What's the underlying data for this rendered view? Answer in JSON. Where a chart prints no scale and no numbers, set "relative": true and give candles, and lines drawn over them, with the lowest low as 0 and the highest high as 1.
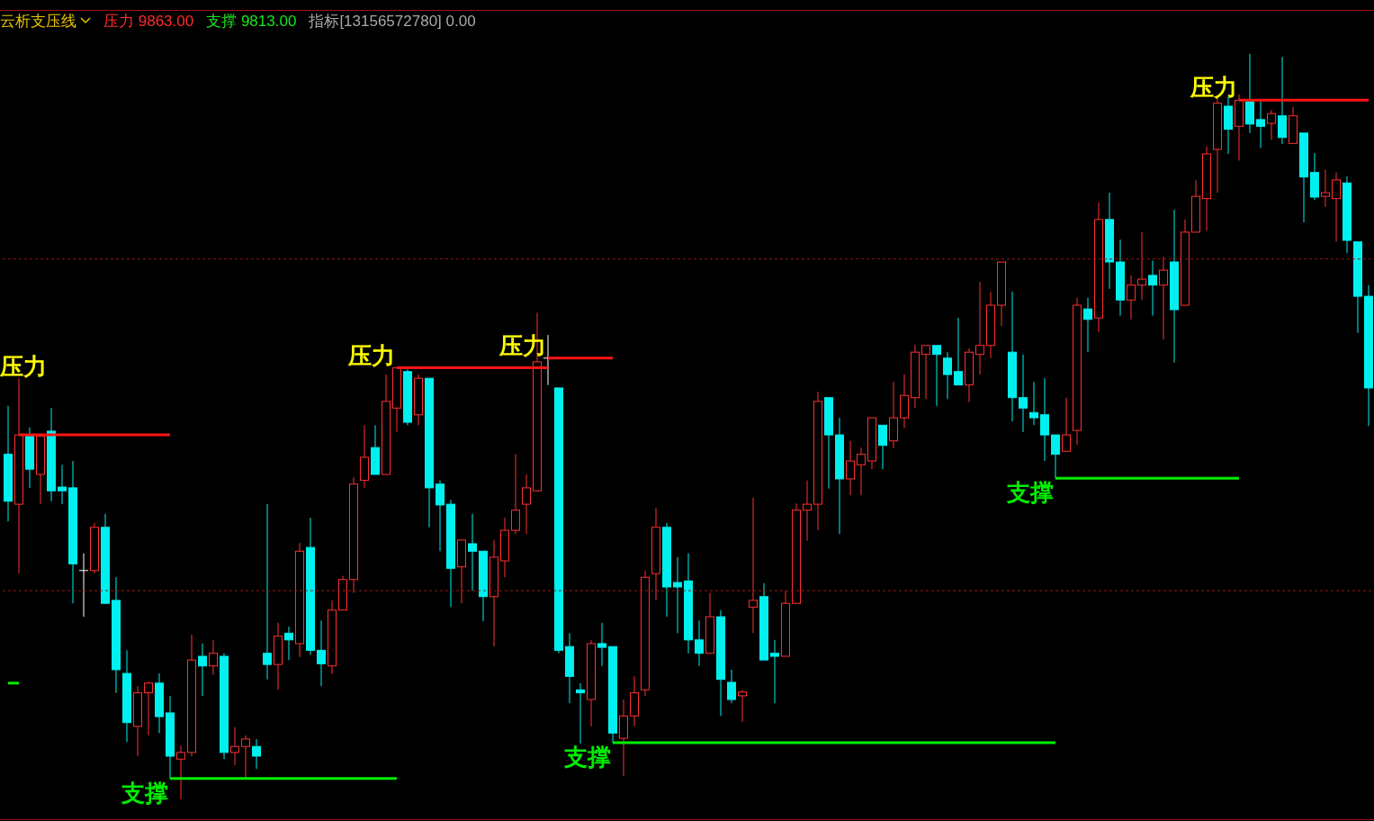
{
  "chart_data": {
    "type": "candlestick",
    "title": "云析支压线",
    "annotations": [
      "压力 9863.00",
      "支撑 9813.00",
      "指标[13156572780] 0.00"
    ],
    "relative": true,
    "categories": [
      null,
      null,
      null,
      null,
      null,
      null,
      null,
      null,
      null,
      null,
      null,
      null,
      null,
      null,
      null,
      null,
      null,
      null,
      null,
      null,
      null,
      null,
      null,
      null,
      null,
      null,
      null,
      null,
      null,
      null,
      null,
      null,
      null,
      null,
      null,
      null,
      null,
      null,
      null,
      null,
      null,
      null,
      null,
      null,
      null,
      null,
      null,
      null,
      null,
      null,
      null,
      null,
      null,
      null,
      null,
      null,
      null,
      null,
      null,
      null,
      null,
      null,
      null,
      null,
      null,
      null,
      null,
      null,
      null,
      null,
      null,
      null,
      null,
      null,
      null,
      null,
      null,
      null,
      null,
      null,
      null,
      null,
      null,
      null,
      null,
      null,
      null,
      null,
      null,
      null,
      null,
      null,
      null,
      null,
      null,
      null,
      null,
      null,
      null,
      null,
      null,
      null,
      null,
      null,
      null,
      null,
      null,
      null,
      null,
      null,
      null,
      null,
      null,
      null,
      null,
      null,
      null,
      null,
      null,
      null,
      null,
      null,
      null,
      null,
      null,
      null,
      null
    ],
    "ohlc": [
      [
        0.463,
        0.528,
        0.373,
        0.4
      ],
      [
        0.396,
        0.565,
        0.303,
        0.489
      ],
      [
        0.487,
        0.499,
        0.418,
        0.443
      ],
      [
        0.436,
        0.489,
        0.396,
        0.487
      ],
      [
        0.494,
        0.525,
        0.4,
        0.414
      ],
      [
        0.419,
        0.449,
        0.396,
        0.414
      ],
      [
        0.418,
        0.454,
        0.263,
        0.316
      ],
      [
        0.307,
        0.33,
        0.245,
        0.307
      ],
      [
        0.307,
        0.371,
        0.303,
        0.365
      ],
      [
        0.365,
        0.383,
        0.263,
        0.263
      ],
      [
        0.267,
        0.298,
        0.143,
        0.174
      ],
      [
        0.169,
        0.2,
        0.077,
        0.103
      ],
      [
        0.098,
        0.152,
        0.058,
        0.143
      ],
      [
        0.143,
        0.158,
        0.086,
        0.156
      ],
      [
        0.156,
        0.169,
        0.089,
        0.111
      ],
      [
        0.116,
        0.139,
        0.028,
        0.058
      ],
      [
        0.054,
        0.072,
        0,
        0.063
      ],
      [
        0.063,
        0.221,
        0.058,
        0.187
      ],
      [
        0.192,
        0.209,
        0.139,
        0.179
      ],
      [
        0.179,
        0.214,
        0.167,
        0.196
      ],
      [
        0.192,
        0.196,
        0.054,
        0.063
      ],
      [
        0.063,
        0.097,
        0.046,
        0.071
      ],
      [
        0.071,
        0.086,
        0.029,
        0.081
      ],
      [
        0.071,
        0.081,
        0.041,
        0.058
      ],
      [
        0.196,
        0.396,
        0.161,
        0.181
      ],
      [
        0.181,
        0.237,
        0.147,
        0.219
      ],
      [
        0.223,
        0.232,
        0.187,
        0.214
      ],
      [
        0.209,
        0.344,
        0.191,
        0.333
      ],
      [
        0.338,
        0.378,
        0.194,
        0.2
      ],
      [
        0.2,
        0.24,
        0.152,
        0.182
      ],
      [
        0.179,
        0.267,
        0.168,
        0.254
      ],
      [
        0.254,
        0.3,
        0.254,
        0.295
      ],
      [
        0.295,
        0.432,
        0.277,
        0.423
      ],
      [
        0.428,
        0.502,
        0.418,
        0.459
      ],
      [
        0.472,
        0.502,
        0.436,
        0.436
      ],
      [
        0.436,
        0.57,
        0.436,
        0.534
      ],
      [
        0.525,
        0.579,
        0.493,
        0.579
      ],
      [
        0.574,
        0.577,
        0.502,
        0.506
      ],
      [
        0.516,
        0.57,
        0.502,
        0.565
      ],
      [
        0.565,
        0.565,
        0.365,
        0.418
      ],
      [
        0.423,
        0.428,
        0.333,
        0.395
      ],
      [
        0.396,
        0.402,
        0.258,
        0.31
      ],
      [
        0.312,
        0.348,
        0.263,
        0.348
      ],
      [
        0.343,
        0.383,
        0.28,
        0.333
      ],
      [
        0.333,
        0.333,
        0.239,
        0.272
      ],
      [
        0.272,
        0.348,
        0.205,
        0.325
      ],
      [
        0.32,
        0.378,
        0.298,
        0.361
      ],
      [
        0.361,
        0.463,
        0.356,
        0.388
      ],
      [
        0.396,
        0.436,
        0.356,
        0.418
      ],
      [
        0.414,
        0.653,
        0.414,
        0.587
      ],
      [
        0.592,
        0.623,
        0.556,
        0.592
      ],
      [
        0.552,
        0.552,
        0.196,
        0.2
      ],
      [
        0.205,
        0.223,
        0.129,
        0.165
      ],
      [
        0.147,
        0.156,
        0.075,
        0.143
      ],
      [
        0.134,
        0.214,
        0.098,
        0.209
      ],
      [
        0.209,
        0.237,
        0.179,
        0.204
      ],
      [
        0.205,
        0.205,
        0.076,
        0.089
      ],
      [
        0.082,
        0.134,
        0.031,
        0.112
      ],
      [
        0.112,
        0.165,
        0.098,
        0.143
      ],
      [
        0.147,
        0.307,
        0.139,
        0.298
      ],
      [
        0.303,
        0.391,
        0.267,
        0.365
      ],
      [
        0.365,
        0.371,
        0.245,
        0.285
      ],
      [
        0.291,
        0.325,
        0.223,
        0.285
      ],
      [
        0.293,
        0.33,
        0.196,
        0.214
      ],
      [
        0.214,
        0.24,
        0.179,
        0.196
      ],
      [
        0.196,
        0.277,
        0.196,
        0.245
      ],
      [
        0.245,
        0.254,
        0.112,
        0.161
      ],
      [
        0.157,
        0.174,
        0.129,
        0.134
      ],
      [
        0.139,
        0.147,
        0.104,
        0.144
      ],
      [
        0.258,
        0.405,
        0.223,
        0.267
      ],
      [
        0.272,
        0.29,
        0.187,
        0.187
      ],
      [
        0.196,
        0.214,
        0.129,
        0.192
      ],
      [
        0.192,
        0.28,
        0.192,
        0.263
      ],
      [
        0.263,
        0.397,
        0.263,
        0.388
      ],
      [
        0.388,
        0.428,
        0.347,
        0.396
      ],
      [
        0.396,
        0.547,
        0.361,
        0.534
      ],
      [
        0.539,
        0.539,
        0.417,
        0.489
      ],
      [
        0.489,
        0.512,
        0.356,
        0.43
      ],
      [
        0.43,
        0.481,
        0.408,
        0.454
      ],
      [
        0.449,
        0.472,
        0.408,
        0.463
      ],
      [
        0.454,
        0.512,
        0.443,
        0.512
      ],
      [
        0.502,
        0.502,
        0.443,
        0.475
      ],
      [
        0.481,
        0.56,
        0.471,
        0.512
      ],
      [
        0.512,
        0.57,
        0.498,
        0.542
      ],
      [
        0.539,
        0.61,
        0.525,
        0.6
      ],
      [
        0.597,
        0.609,
        0.537,
        0.609
      ],
      [
        0.609,
        0.609,
        0.528,
        0.597
      ],
      [
        0.592,
        0.6,
        0.537,
        0.57
      ],
      [
        0.574,
        0.646,
        0.556,
        0.556
      ],
      [
        0.556,
        0.605,
        0.533,
        0.6
      ],
      [
        0.597,
        0.694,
        0.57,
        0.609
      ],
      [
        0.609,
        0.681,
        0.592,
        0.663
      ],
      [
        0.663,
        0.721,
        0.635,
        0.721
      ],
      [
        0.6,
        0.681,
        0.507,
        0.539
      ],
      [
        0.539,
        0.597,
        0.493,
        0.525
      ],
      [
        0.519,
        0.56,
        0.502,
        0.512
      ],
      [
        0.516,
        0.565,
        0.454,
        0.489
      ],
      [
        0.489,
        0.489,
        0.431,
        0.463
      ],
      [
        0.467,
        0.539,
        0.467,
        0.489
      ],
      [
        0.495,
        0.673,
        0.476,
        0.663
      ],
      [
        0.658,
        0.673,
        0.6,
        0.644
      ],
      [
        0.646,
        0.801,
        0.627,
        0.778
      ],
      [
        0.778,
        0.814,
        0.685,
        0.721
      ],
      [
        0.721,
        0.751,
        0.649,
        0.67
      ],
      [
        0.67,
        0.703,
        0.644,
        0.69
      ],
      [
        0.69,
        0.761,
        0.67,
        0.698
      ],
      [
        0.703,
        0.723,
        0.649,
        0.69
      ],
      [
        0.69,
        0.728,
        0.617,
        0.71
      ],
      [
        0.721,
        0.791,
        0.586,
        0.657
      ],
      [
        0.663,
        0.778,
        0.663,
        0.761
      ],
      [
        0.761,
        0.831,
        0.761,
        0.809
      ],
      [
        0.806,
        0.876,
        0.763,
        0.866
      ],
      [
        0.872,
        0.941,
        0.814,
        0.934
      ],
      [
        0.93,
        0.943,
        0.866,
        0.899
      ],
      [
        0.903,
        0.946,
        0.857,
        0.938
      ],
      [
        0.936,
        1,
        0.894,
        0.906
      ],
      [
        0.912,
        0.936,
        0.874,
        0.903
      ],
      [
        0.907,
        0.925,
        0.885,
        0.92
      ],
      [
        0.917,
        0.996,
        0.879,
        0.888
      ],
      [
        0.88,
        0.929,
        0.88,
        0.917
      ],
      [
        0.894,
        0.894,
        0.774,
        0.835
      ],
      [
        0.841,
        0.867,
        0.804,
        0.808
      ],
      [
        0.809,
        0.845,
        0.795,
        0.814
      ],
      [
        0.806,
        0.841,
        0.748,
        0.831
      ],
      [
        0.827,
        0.836,
        0.733,
        0.75
      ],
      [
        0.748,
        0.748,
        0.626,
        0.675
      ],
      [
        0.675,
        0.69,
        0.501,
        0.552
      ]
    ],
    "colors": [
      "#00f0f0",
      "#ff3030",
      "#00f0f0",
      "#ff3030",
      "#00f0f0",
      "#00f0f0",
      "#00f0f0",
      "#ffffff",
      "#ff3030",
      "#00f0f0",
      "#00f0f0",
      "#00f0f0",
      "#ff3030",
      "#ff3030",
      "#00f0f0",
      "#00f0f0",
      "#ff3030",
      "#ff3030",
      "#00f0f0",
      "#ff3030",
      "#00f0f0",
      "#ff3030",
      "#ff3030",
      "#00f0f0",
      "#00f0f0",
      "#ff3030",
      "#00f0f0",
      "#ff3030",
      "#00f0f0",
      "#00f0f0",
      "#ff3030",
      "#ff3030",
      "#ff3030",
      "#ff3030",
      "#00f0f0",
      "#ff3030",
      "#ff3030",
      "#00f0f0",
      "#ff3030",
      "#00f0f0",
      "#00f0f0",
      "#00f0f0",
      "#ff3030",
      "#00f0f0",
      "#00f0f0",
      "#ff3030",
      "#ff3030",
      "#ff3030",
      "#ff3030",
      "#ff3030",
      "#ffffff",
      "#00f0f0",
      "#00f0f0",
      "#00f0f0",
      "#ff3030",
      "#00f0f0",
      "#00f0f0",
      "#ff3030",
      "#ff3030",
      "#ff3030",
      "#ff3030",
      "#00f0f0",
      "#00f0f0",
      "#00f0f0",
      "#00f0f0",
      "#ff3030",
      "#00f0f0",
      "#00f0f0",
      "#ff3030",
      "#ff3030",
      "#00f0f0",
      "#00f0f0",
      "#ff3030",
      "#ff3030",
      "#ff3030",
      "#ff3030",
      "#00f0f0",
      "#00f0f0",
      "#ff3030",
      "#ff3030",
      "#ff3030",
      "#00f0f0",
      "#ff3030",
      "#ff3030",
      "#ff3030",
      "#ff3030",
      "#00f0f0",
      "#00f0f0",
      "#00f0f0",
      "#ff3030",
      "#ff3030",
      "#ff3030",
      "#ff3030",
      "#00f0f0",
      "#00f0f0",
      "#00f0f0",
      "#00f0f0",
      "#00f0f0",
      "#ff3030",
      "#ff3030",
      "#00f0f0",
      "#ff3030",
      "#00f0f0",
      "#00f0f0",
      "#ff3030",
      "#ff3030",
      "#00f0f0",
      "#ff3030",
      "#00f0f0",
      "#ff3030",
      "#ff3030",
      "#ff3030",
      "#ff3030",
      "#00f0f0",
      "#ff3030",
      "#00f0f0",
      "#00f0f0",
      "#ff3030",
      "#00f0f0",
      "#ff3030",
      "#00f0f0",
      "#00f0f0",
      "#ff3030",
      "#ff3030",
      "#00f0f0",
      "#00f0f0",
      "#00f0f0"
    ],
    "series": [
      {
        "type": "line",
        "color": "#00ee00",
        "values": [
          0.156,
          0.156,
          null,
          null,
          null,
          null,
          null,
          null,
          null,
          null,
          null,
          null,
          null,
          null,
          null,
          null,
          null,
          null,
          null,
          null,
          null,
          null,
          null,
          null,
          null,
          null,
          null,
          null,
          null,
          null,
          null,
          null,
          null,
          null,
          null,
          null,
          null,
          null,
          null,
          null,
          null,
          null,
          null,
          null,
          null,
          null,
          null,
          null,
          null,
          null,
          null,
          null,
          null,
          null,
          null,
          null,
          null,
          null,
          null,
          null,
          null,
          null,
          null,
          null,
          null,
          null,
          null,
          null,
          null,
          null,
          null,
          null,
          null,
          null,
          null,
          null,
          null,
          null,
          null,
          null,
          null,
          null,
          null,
          null,
          null,
          null,
          null,
          null,
          null,
          null,
          null,
          null,
          null,
          null,
          null,
          null,
          null,
          null,
          null,
          null,
          null,
          null,
          null,
          null,
          null,
          null,
          null,
          null,
          null,
          null,
          null,
          null,
          null,
          null,
          null,
          null,
          null,
          null,
          null,
          null,
          null,
          null,
          null,
          null,
          null,
          null,
          null
        ]
      },
      {
        "type": "line",
        "name": "压力",
        "color": "#ff1414",
        "values": [
          null,
          0.489,
          0.489,
          0.489,
          0.489,
          0.489,
          0.489,
          0.489,
          0.489,
          0.489,
          0.489,
          0.489,
          0.489,
          0.489,
          0.489,
          0.489,
          null,
          null,
          null,
          null,
          null,
          null,
          null,
          null,
          null,
          null,
          null,
          null,
          null,
          null,
          null,
          null,
          null,
          null,
          null,
          null,
          null,
          null,
          null,
          null,
          null,
          null,
          null,
          null,
          null,
          null,
          null,
          null,
          null,
          null,
          null,
          null,
          null,
          null,
          null,
          null,
          null,
          null,
          null,
          null,
          null,
          null,
          null,
          null,
          null,
          null,
          null,
          null,
          null,
          null,
          null,
          null,
          null,
          null,
          null,
          null,
          null,
          null,
          null,
          null,
          null,
          null,
          null,
          null,
          null,
          null,
          null,
          null,
          null,
          null,
          null,
          null,
          null,
          null,
          null,
          null,
          null,
          null,
          null,
          null,
          null,
          null,
          null,
          null,
          null,
          null,
          null,
          null,
          null,
          null,
          null,
          null,
          null,
          null,
          null,
          null,
          null,
          null,
          null,
          null,
          null,
          null,
          null,
          null,
          null,
          null,
          null
        ]
      },
      {
        "type": "line",
        "name": "支撑",
        "color": "#00ee00",
        "values": [
          null,
          null,
          null,
          null,
          null,
          null,
          null,
          null,
          null,
          null,
          null,
          null,
          null,
          null,
          null,
          0.028,
          0.028,
          0.028,
          0.028,
          0.028,
          0.028,
          0.028,
          0.028,
          0.028,
          0.028,
          0.028,
          0.028,
          0.028,
          0.028,
          0.028,
          0.028,
          0.028,
          0.028,
          0.028,
          0.028,
          0.028,
          0.028,
          null,
          null,
          null,
          null,
          null,
          null,
          null,
          null,
          null,
          null,
          null,
          null,
          null,
          null,
          null,
          null,
          null,
          null,
          null,
          null,
          null,
          null,
          null,
          null,
          null,
          null,
          null,
          null,
          null,
          null,
          null,
          null,
          null,
          null,
          null,
          null,
          null,
          null,
          null,
          null,
          null,
          null,
          null,
          null,
          null,
          null,
          null,
          null,
          null,
          null,
          null,
          null,
          null,
          null,
          null,
          null,
          null,
          null,
          null,
          null,
          null,
          null,
          null,
          null,
          null,
          null,
          null,
          null,
          null,
          null,
          null,
          null,
          null,
          null,
          null,
          null,
          null,
          null,
          null,
          null,
          null,
          null,
          null,
          null,
          null,
          null,
          null,
          null,
          null,
          null
        ]
      },
      {
        "type": "line",
        "name": "压力",
        "color": "#ff1414",
        "values": [
          null,
          null,
          null,
          null,
          null,
          null,
          null,
          null,
          null,
          null,
          null,
          null,
          null,
          null,
          null,
          null,
          null,
          null,
          null,
          null,
          null,
          null,
          null,
          null,
          null,
          null,
          null,
          null,
          null,
          null,
          null,
          null,
          null,
          null,
          null,
          null,
          0.579,
          0.579,
          0.579,
          0.579,
          0.579,
          0.579,
          0.579,
          0.579,
          0.579,
          0.579,
          0.579,
          0.579,
          0.579,
          0.579,
          0.579,
          null,
          null,
          null,
          null,
          null,
          null,
          null,
          null,
          null,
          null,
          null,
          null,
          null,
          null,
          null,
          null,
          null,
          null,
          null,
          null,
          null,
          null,
          null,
          null,
          null,
          null,
          null,
          null,
          null,
          null,
          null,
          null,
          null,
          null,
          null,
          null,
          null,
          null,
          null,
          null,
          null,
          null,
          null,
          null,
          null,
          null,
          null,
          null,
          null,
          null,
          null,
          null,
          null,
          null,
          null,
          null,
          null,
          null,
          null,
          null,
          null,
          null,
          null,
          null,
          null,
          null,
          null,
          null,
          null,
          null,
          null,
          null,
          null,
          null,
          null,
          null
        ]
      },
      {
        "type": "line",
        "name": "压力",
        "color": "#ff1414",
        "values": [
          null,
          null,
          null,
          null,
          null,
          null,
          null,
          null,
          null,
          null,
          null,
          null,
          null,
          null,
          null,
          null,
          null,
          null,
          null,
          null,
          null,
          null,
          null,
          null,
          null,
          null,
          null,
          null,
          null,
          null,
          null,
          null,
          null,
          null,
          null,
          null,
          null,
          null,
          null,
          null,
          null,
          null,
          null,
          null,
          null,
          null,
          null,
          null,
          null,
          null,
          0.592,
          0.592,
          0.592,
          0.592,
          0.592,
          0.592,
          0.592,
          null,
          null,
          null,
          null,
          null,
          null,
          null,
          null,
          null,
          null,
          null,
          null,
          null,
          null,
          null,
          null,
          null,
          null,
          null,
          null,
          null,
          null,
          null,
          null,
          null,
          null,
          null,
          null,
          null,
          null,
          null,
          null,
          null,
          null,
          null,
          null,
          null,
          null,
          null,
          null,
          null,
          null,
          null,
          null,
          null,
          null,
          null,
          null,
          null,
          null,
          null,
          null,
          null,
          null,
          null,
          null,
          null,
          null,
          null,
          null,
          null,
          null,
          null,
          null,
          null,
          null,
          null,
          null,
          null,
          null
        ]
      },
      {
        "type": "line",
        "name": "支撑",
        "color": "#00ee00",
        "values": [
          null,
          null,
          null,
          null,
          null,
          null,
          null,
          null,
          null,
          null,
          null,
          null,
          null,
          null,
          null,
          null,
          null,
          null,
          null,
          null,
          null,
          null,
          null,
          null,
          null,
          null,
          null,
          null,
          null,
          null,
          null,
          null,
          null,
          null,
          null,
          null,
          null,
          null,
          null,
          null,
          null,
          null,
          null,
          null,
          null,
          null,
          null,
          null,
          null,
          null,
          null,
          null,
          null,
          null,
          null,
          null,
          0.076,
          0.076,
          0.076,
          0.076,
          0.076,
          0.076,
          0.076,
          0.076,
          0.076,
          0.076,
          0.076,
          0.076,
          0.076,
          0.076,
          0.076,
          0.076,
          0.076,
          0.076,
          0.076,
          0.076,
          0.076,
          0.076,
          0.076,
          0.076,
          0.076,
          0.076,
          0.076,
          0.076,
          0.076,
          0.076,
          0.076,
          0.076,
          0.076,
          0.076,
          0.076,
          0.076,
          0.076,
          0.076,
          0.076,
          0.076,
          0.076,
          0.076,
          null,
          null,
          null,
          null,
          null,
          null,
          null,
          null,
          null,
          null,
          null,
          null,
          null,
          null,
          null,
          null,
          null,
          null,
          null,
          null,
          null,
          null,
          null,
          null,
          null,
          null,
          null,
          null,
          null
        ]
      },
      {
        "type": "line",
        "name": "支撑",
        "color": "#00ee00",
        "values": [
          null,
          null,
          null,
          null,
          null,
          null,
          null,
          null,
          null,
          null,
          null,
          null,
          null,
          null,
          null,
          null,
          null,
          null,
          null,
          null,
          null,
          null,
          null,
          null,
          null,
          null,
          null,
          null,
          null,
          null,
          null,
          null,
          null,
          null,
          null,
          null,
          null,
          null,
          null,
          null,
          null,
          null,
          null,
          null,
          null,
          null,
          null,
          null,
          null,
          null,
          null,
          null,
          null,
          null,
          null,
          null,
          null,
          null,
          null,
          null,
          null,
          null,
          null,
          null,
          null,
          null,
          null,
          null,
          null,
          null,
          null,
          null,
          null,
          null,
          null,
          null,
          null,
          null,
          null,
          null,
          null,
          null,
          null,
          null,
          null,
          null,
          null,
          null,
          null,
          null,
          null,
          null,
          null,
          null,
          null,
          null,
          null,
          0.431,
          0.431,
          0.431,
          0.431,
          0.431,
          0.431,
          0.431,
          0.431,
          0.431,
          0.431,
          0.431,
          0.431,
          0.431,
          0.431,
          0.431,
          0.431,
          0.431,
          0.431,
          null,
          null,
          null,
          null,
          null,
          null,
          null,
          null,
          null,
          null,
          null,
          null
        ]
      },
      {
        "type": "line",
        "name": "压力",
        "color": "#ff1414",
        "values": [
          null,
          null,
          null,
          null,
          null,
          null,
          null,
          null,
          null,
          null,
          null,
          null,
          null,
          null,
          null,
          null,
          null,
          null,
          null,
          null,
          null,
          null,
          null,
          null,
          null,
          null,
          null,
          null,
          null,
          null,
          null,
          null,
          null,
          null,
          null,
          null,
          null,
          null,
          null,
          null,
          null,
          null,
          null,
          null,
          null,
          null,
          null,
          null,
          null,
          null,
          null,
          null,
          null,
          null,
          null,
          null,
          null,
          null,
          null,
          null,
          null,
          null,
          null,
          null,
          null,
          null,
          null,
          null,
          null,
          null,
          null,
          null,
          null,
          null,
          null,
          null,
          null,
          null,
          null,
          null,
          null,
          null,
          null,
          null,
          null,
          null,
          null,
          null,
          null,
          null,
          null,
          null,
          null,
          null,
          null,
          null,
          null,
          null,
          null,
          null,
          null,
          null,
          null,
          null,
          null,
          null,
          null,
          null,
          null,
          null,
          null,
          null,
          null,
          null,
          0.938,
          0.938,
          0.938,
          0.938,
          0.938,
          0.938,
          0.938,
          0.938,
          0.938,
          0.938,
          0.938,
          0.938,
          0.938
        ]
      }
    ],
    "ref_lines": [
      {
        "axis": "y",
        "value": 0.725,
        "color": "#a01414",
        "line_style": "dotted"
      },
      {
        "axis": "y",
        "value": 0.28,
        "color": "#a01414",
        "line_style": "dotted"
      }
    ]
  }
}
